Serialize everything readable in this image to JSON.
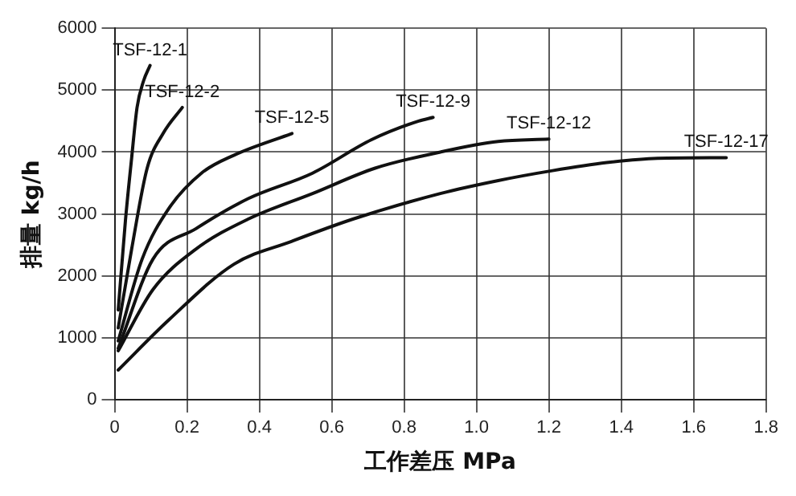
{
  "chart_data": {
    "type": "line",
    "xlabel": "工作差压 MPa",
    "ylabel": "排量 kg/h",
    "xlim": [
      0,
      1.8
    ],
    "xticks": [
      0,
      0.2,
      0.4,
      0.6,
      0.8,
      {
        "value": 1,
        "label": "1.0"
      },
      1.2,
      1.4,
      1.6,
      1.8
    ],
    "ylim": [
      0,
      6000
    ],
    "yticks": [
      0,
      1000,
      2000,
      3000,
      4000,
      5000,
      6000
    ],
    "grid": true,
    "legend": false,
    "marker": "none",
    "line_style": "solid",
    "series": [
      {
        "name": "TSF-12-1",
        "color": "#111111",
        "x": [
          0.01,
          0.03,
          0.047,
          0.062,
          0.08,
          0.098
        ],
        "values": [
          1450,
          2900,
          3900,
          4720,
          5150,
          5400
        ]
      },
      {
        "name": "TSF-12-2",
        "color": "#111111",
        "x": [
          0.01,
          0.047,
          0.09,
          0.135,
          0.187
        ],
        "values": [
          1160,
          2430,
          3740,
          4310,
          4720
        ]
      },
      {
        "name": "TSF-12-5",
        "color": "#111111",
        "x": [
          0.01,
          0.076,
          0.15,
          0.24,
          0.33,
          0.49
        ],
        "values": [
          950,
          2270,
          3090,
          3660,
          3950,
          4300
        ]
      },
      {
        "name": "TSF-12-9",
        "color": "#111111",
        "x": [
          0.01,
          0.106,
          0.224,
          0.37,
          0.547,
          0.71,
          0.84,
          0.88
        ],
        "values": [
          830,
          2270,
          2760,
          3250,
          3660,
          4200,
          4500,
          4560
        ]
      },
      {
        "name": "TSF-12-12",
        "color": "#111111",
        "x": [
          0.01,
          0.106,
          0.224,
          0.37,
          0.547,
          0.72,
          0.9,
          1.06,
          1.2
        ],
        "values": [
          790,
          1780,
          2430,
          2920,
          3330,
          3740,
          4000,
          4170,
          4210
        ]
      },
      {
        "name": "TSF-12-17",
        "color": "#111111",
        "x": [
          0.01,
          0.15,
          0.33,
          0.49,
          0.66,
          0.9,
          1.06,
          1.21,
          1.36,
          1.5,
          1.69
        ],
        "values": [
          480,
          1290,
          2190,
          2560,
          2920,
          3330,
          3540,
          3700,
          3830,
          3900,
          3910
        ]
      }
    ]
  }
}
